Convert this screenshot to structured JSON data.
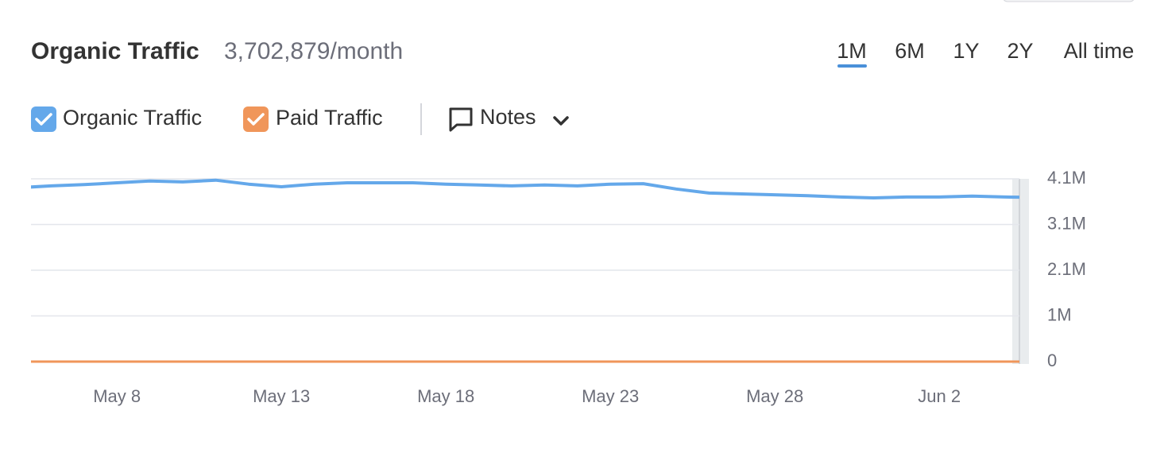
{
  "header": {
    "title": "Organic Traffic",
    "value": "3,702,879/month"
  },
  "periods": [
    "1M",
    "6M",
    "1Y",
    "2Y",
    "All time"
  ],
  "notes": "Notes",
  "chart_data": {
    "type": "line",
    "categories": [
      null,
      null,
      null,
      "May 8",
      null,
      null,
      null,
      null,
      "May 13",
      null,
      null,
      null,
      null,
      "May 18",
      null,
      null,
      null,
      null,
      "May 23",
      null,
      null,
      null,
      null,
      "May 28",
      null,
      null,
      null,
      null,
      "Jun 2",
      null,
      null,
      null
    ],
    "series": [
      {
        "name": "Organic Traffic",
        "color": "#64a8ea",
        "values": [
          3920000,
          3960000,
          3990000,
          4030000,
          4070000,
          4050000,
          4090000,
          4000000,
          3940000,
          4000000,
          4030000,
          4030000,
          4030000,
          4000000,
          3980000,
          3960000,
          3980000,
          3960000,
          4000000,
          4010000,
          3890000,
          3800000,
          3780000,
          3760000,
          3740000,
          3710000,
          3690000,
          3710000,
          3710000,
          3730000,
          3710000,
          3700000
        ]
      },
      {
        "name": "Paid Traffic",
        "color": "#f0965a",
        "values": [
          0,
          0,
          0,
          0,
          0,
          0,
          0,
          0,
          0,
          0,
          0,
          0,
          0,
          0,
          0,
          0,
          0,
          0,
          0,
          0,
          0,
          0,
          0,
          0,
          0,
          0,
          0,
          0,
          0,
          0,
          0,
          0
        ]
      }
    ],
    "ylim": [
      0,
      4120000
    ],
    "yticks": [
      0,
      {
        "value": 1030000,
        "label": "1M"
      },
      {
        "value": 2060000,
        "label": "2.1M"
      },
      {
        "value": 3090000,
        "label": "3.1M"
      },
      {
        "value": 4120000,
        "label": "4.1M"
      }
    ],
    "grid": true
  }
}
